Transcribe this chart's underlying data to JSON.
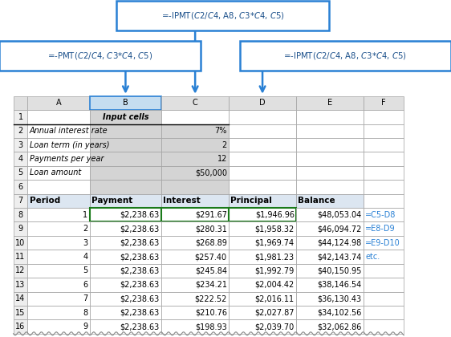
{
  "col_headers": [
    "A",
    "B",
    "C",
    "D",
    "E",
    "F"
  ],
  "input_rows": [
    [
      "",
      "Input cells",
      "",
      "",
      "",
      ""
    ],
    [
      "Annual interest rate",
      "",
      "7%",
      "",
      "",
      ""
    ],
    [
      "Loan term (in years)",
      "",
      "2",
      "",
      "",
      ""
    ],
    [
      "Payments per year",
      "",
      "12",
      "",
      "",
      ""
    ],
    [
      "Loan amount",
      "",
      "$50,000",
      "",
      "",
      ""
    ],
    [
      "",
      "",
      "",
      "",
      "",
      ""
    ]
  ],
  "header_row": [
    "Period",
    "Payment",
    "Interest",
    "Principal",
    "Balance",
    ""
  ],
  "data_rows": [
    [
      "1",
      "$2,238.63",
      "$291.67",
      "$1,946.96",
      "$48,053.04",
      "=C5-D8"
    ],
    [
      "2",
      "$2,238.63",
      "$280.31",
      "$1,958.32",
      "$46,094.72",
      "=E8-D9"
    ],
    [
      "3",
      "$2,238.63",
      "$268.89",
      "$1,969.74",
      "$44,124.98",
      "=E9-D10"
    ],
    [
      "4",
      "$2,238.63",
      "$257.40",
      "$1,981.23",
      "$42,143.74",
      "etc."
    ],
    [
      "5",
      "$2,238.63",
      "$245.84",
      "$1,992.79",
      "$40,150.95",
      ""
    ],
    [
      "6",
      "$2,238.63",
      "$234.21",
      "$2,004.42",
      "$38,146.54",
      ""
    ],
    [
      "7",
      "$2,238.63",
      "$222.52",
      "$2,016.11",
      "$36,130.43",
      ""
    ],
    [
      "8",
      "$2,238.63",
      "$210.76",
      "$2,027.87",
      "$34,102.56",
      ""
    ],
    [
      "9",
      "$2,238.63",
      "$198.93",
      "$2,039.70",
      "$32,062.86",
      ""
    ]
  ],
  "formula_left_text": "=-PMT($C$2/$C$4, $C$3*$C$4, $C$5)",
  "formula_top_text": "=-IPMT($C$2/$C$4, A8, $C$3*$C$4, $C$5)",
  "formula_right_text": "=-IPMT($C$2/$C$4, A8, $C$3*$C$4, $C$5)",
  "colors": {
    "grid_color": "#a0a0a0",
    "formula_box_border": "#2980d4",
    "formula_text": "#1a4f8a",
    "arrow_color": "#2980d4",
    "formula_ref_text": "#2980d4",
    "highlight_border": "#1a7a1a",
    "col_b_header_bg": "#c5ddf0",
    "row7_bg": "#dce6f1",
    "input_value_bg": "#d4d4d4",
    "wavy_color": "#888888",
    "row_num_bg": "#eeeeee"
  }
}
